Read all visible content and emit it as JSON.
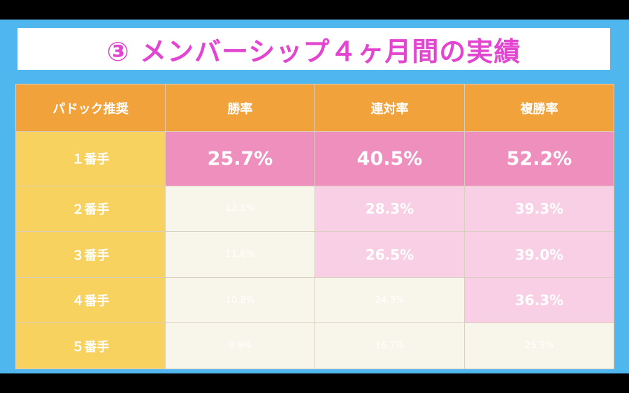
{
  "title": "③ メンバーシップ４ヶ月間の実績",
  "colors": {
    "background": "#4fb6ee",
    "title": "#e245cf",
    "header": "#f2a23b",
    "row_header": "#f8d25e",
    "top_row": "#ee8fbe",
    "highlight": "#f8cfe4",
    "highlight_text": "#f04a2a",
    "plain": "#f8f6ea"
  },
  "table": {
    "headers": [
      "パドック推奨",
      "勝率",
      "連対率",
      "複勝率"
    ],
    "rows": [
      {
        "label": "１番手",
        "win": "25.7%",
        "quinella": "40.5%",
        "place": "52.2%"
      },
      {
        "label": "２番手",
        "win": "12.5%",
        "quinella": "28.3%",
        "place": "39.3%"
      },
      {
        "label": "３番手",
        "win": "11.6%",
        "quinella": "26.5%",
        "place": "39.0%"
      },
      {
        "label": "４番手",
        "win": "10.8%",
        "quinella": "24.3%",
        "place": "36.3%"
      },
      {
        "label": "５番手",
        "win": "9.9%",
        "quinella": "16.7%",
        "place": "25.3%"
      }
    ]
  }
}
